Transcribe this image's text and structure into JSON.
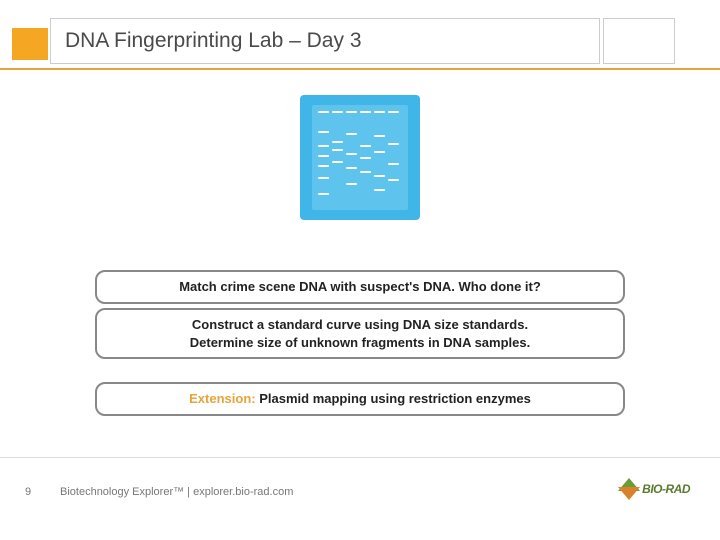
{
  "header": {
    "title": "DNA Fingerprinting Lab – Day 3",
    "accent_color": "#f5a623",
    "border_color": "#e8a33d"
  },
  "gel": {
    "bg_color": "#3fb5e8",
    "inner_color": "#5ec4ed",
    "band_color": "#ffffff",
    "lanes": [
      {
        "x": 6,
        "bands": [
          6,
          26,
          40,
          50,
          60,
          72,
          88
        ]
      },
      {
        "x": 20,
        "bands": [
          6,
          36,
          44,
          56
        ]
      },
      {
        "x": 34,
        "bands": [
          6,
          28,
          48,
          62,
          78
        ]
      },
      {
        "x": 48,
        "bands": [
          6,
          40,
          52,
          66
        ]
      },
      {
        "x": 62,
        "bands": [
          6,
          30,
          46,
          70,
          84
        ]
      },
      {
        "x": 76,
        "bands": [
          6,
          38,
          58,
          74
        ]
      }
    ],
    "band_width": 11
  },
  "boxes": {
    "box1": "Match crime scene DNA with suspect's DNA. Who done it?",
    "box2_line1": "Construct a standard curve using DNA size standards.",
    "box2_line2": "Determine size of unknown fragments in DNA samples.",
    "box3_prefix": "Extension:",
    "box3_text": " Plasmid mapping using restriction enzymes",
    "border_color": "#888888",
    "extension_color": "#e8a33d"
  },
  "footer": {
    "page_number": "9",
    "text": "Biotechnology Explorer™ |   explorer.bio-rad.com",
    "logo_text": "BIO-RAD",
    "logo_green": "#6b9b37",
    "logo_orange": "#d9822b"
  }
}
